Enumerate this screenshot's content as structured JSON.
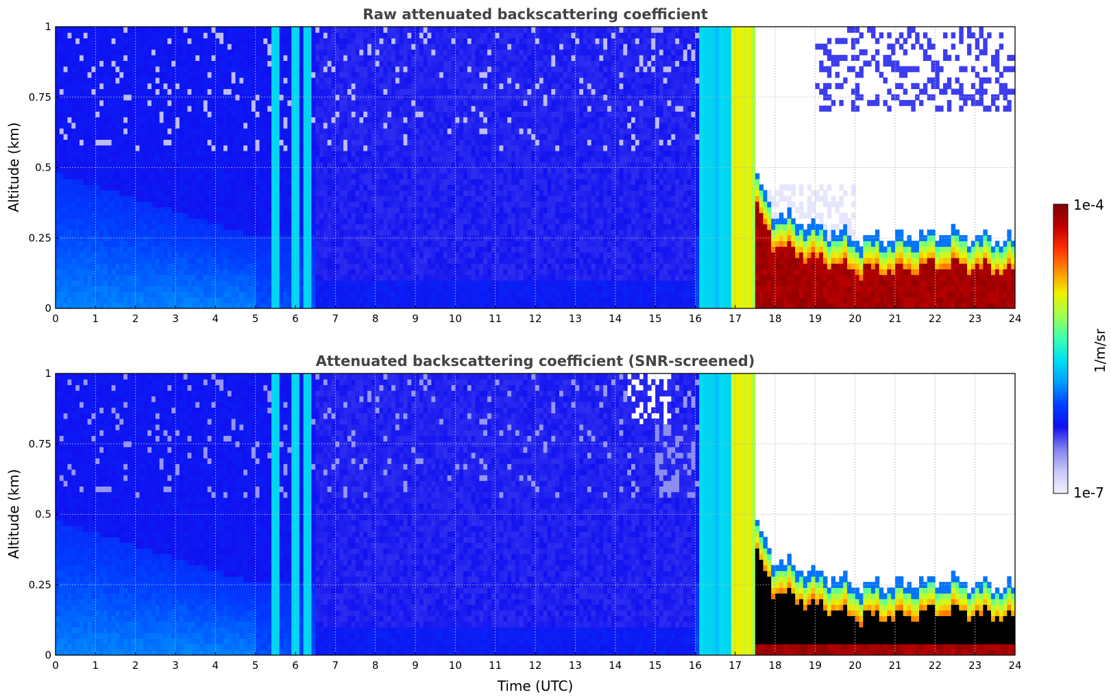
{
  "chart_data": [
    {
      "type": "heatmap",
      "title": "Raw attenuated backscattering coefficient",
      "xlabel": "",
      "ylabel": "Altitude (km)",
      "xlim": [
        0,
        24
      ],
      "ylim": [
        0,
        1
      ],
      "xticks": [
        "0",
        "1",
        "2",
        "3",
        "4",
        "5",
        "6",
        "7",
        "8",
        "9",
        "10",
        "11",
        "12",
        "13",
        "14",
        "15",
        "16",
        "17",
        "18",
        "19",
        "20",
        "21",
        "22",
        "23",
        "24"
      ],
      "yticks": [
        "0",
        "0.25",
        "0.5",
        "0.75",
        "1"
      ],
      "grid": true,
      "features": {
        "background_level": "blue (~1e-6)",
        "surface_layer_top_km_at_0h": 0.48,
        "surface_layer_top_km_at_5h": 0.26,
        "rain_bands_utc": [
          5.5,
          6.0,
          6.3,
          16.3,
          16.8,
          17.3
        ],
        "cloud_base_km": [
          {
            "t": 17.5,
            "z": 0.38
          },
          {
            "t": 18.0,
            "z": 0.25
          },
          {
            "t": 19.0,
            "z": 0.2
          },
          {
            "t": 20.0,
            "z": 0.16
          },
          {
            "t": 21.0,
            "z": 0.16
          },
          {
            "t": 22.3,
            "z": 0.18
          },
          {
            "t": 24.0,
            "z": 0.15
          }
        ],
        "missing_signal_region": {
          "t_start": 17.5,
          "t_end": 24,
          "z_above_km": 0.3
        }
      }
    },
    {
      "type": "heatmap",
      "title": "Attenuated backscattering coefficient (SNR-screened)",
      "xlabel": "Time (UTC)",
      "ylabel": "Altitude (km)",
      "xlim": [
        0,
        24
      ],
      "ylim": [
        0,
        1
      ],
      "xticks": [
        "0",
        "1",
        "2",
        "3",
        "4",
        "5",
        "6",
        "7",
        "8",
        "9",
        "10",
        "11",
        "12",
        "13",
        "14",
        "15",
        "16",
        "17",
        "18",
        "19",
        "20",
        "21",
        "22",
        "23",
        "24"
      ],
      "yticks": [
        "0",
        "0.25",
        "0.5",
        "0.75",
        "1"
      ],
      "grid": true,
      "features": {
        "screened_region": {
          "t_start": 17.5,
          "t_end": 24,
          "z_above_km": 0.25
        },
        "saturated_black_layer_km": [
          0.03,
          0.17
        ]
      }
    }
  ],
  "colorbar": {
    "label": "1/m/sr",
    "min_label": "1e-7",
    "max_label": "1e-4",
    "colormap": "jet-with-white-low",
    "colors": [
      "#f0f0ff",
      "#c8c8f8",
      "#8080f0",
      "#1010f0",
      "#0040ff",
      "#00a0ff",
      "#00e0f0",
      "#40ffb0",
      "#a0ff50",
      "#f0f000",
      "#ff9000",
      "#ff3000",
      "#c00000",
      "#800000"
    ]
  }
}
